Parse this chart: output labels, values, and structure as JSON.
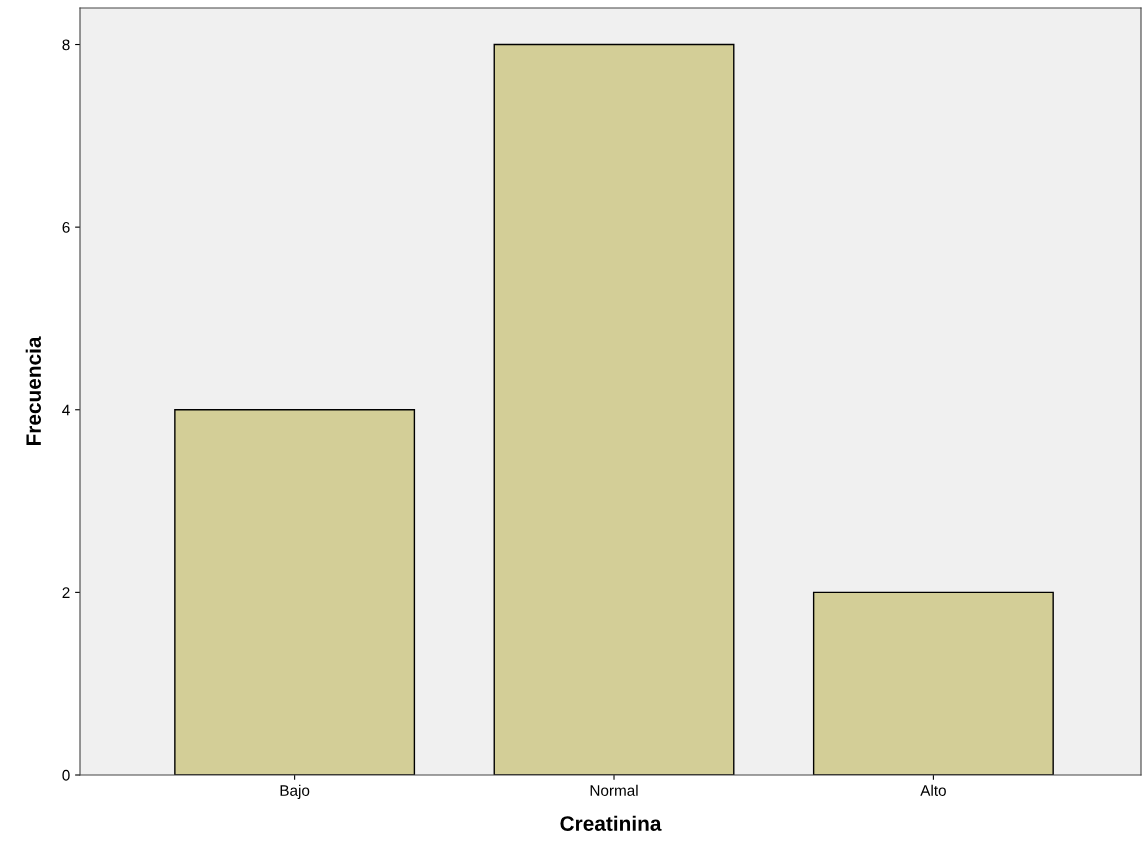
{
  "chart_data": {
    "type": "bar",
    "xlabel": "Creatinina",
    "ylabel": "Frecuencia",
    "categories": [
      "Bajo",
      "Normal",
      "Alto"
    ],
    "values": [
      4,
      8,
      2
    ],
    "color": "#d3ce97",
    "ylim": [
      0,
      8.4
    ],
    "yticks": [
      0,
      2,
      4,
      6,
      8
    ],
    "grid": false,
    "legend": false
  }
}
